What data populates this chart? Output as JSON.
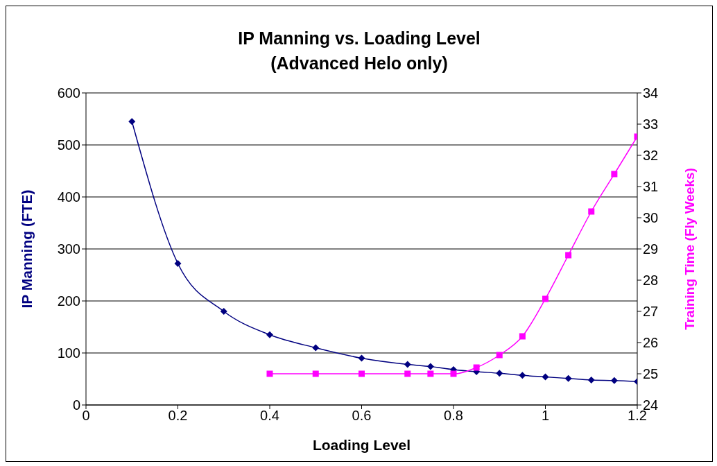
{
  "chart_data": {
    "type": "line",
    "title": "IP Manning vs. Loading Level\n(Advanced Helo only)",
    "xlabel": "Loading Level",
    "ylabel": "IP Manning (FTE)",
    "y2label": "Training Time (Fly Weeks)",
    "xlim": [
      0,
      1.2
    ],
    "xticks": [
      0,
      0.2,
      0.4,
      0.6,
      0.8,
      1,
      1.2
    ],
    "ylim": [
      0,
      600
    ],
    "yticks": [
      0,
      100,
      200,
      300,
      400,
      500,
      600
    ],
    "y2lim": [
      24,
      34
    ],
    "y2ticks": [
      24,
      25,
      26,
      27,
      28,
      29,
      30,
      31,
      32,
      33,
      34
    ],
    "grid": "y",
    "legend": false,
    "series": [
      {
        "color": "#000080",
        "marker": "diamond",
        "x": [
          0.1,
          0.2,
          0.3,
          0.4,
          0.5,
          0.6,
          0.7,
          0.75,
          0.8,
          0.85,
          0.9,
          0.95,
          1.0,
          1.05,
          1.1,
          1.15,
          1.2
        ],
        "values": [
          545,
          272,
          180,
          135,
          110,
          90,
          78,
          74,
          68,
          64,
          61,
          57,
          54,
          51,
          48,
          47,
          45
        ]
      },
      {
        "color": "#ff00ff",
        "marker": "square",
        "axis": "y2",
        "x": [
          0.4,
          0.5,
          0.6,
          0.7,
          0.75,
          0.8,
          0.85,
          0.9,
          0.95,
          1.0,
          1.05,
          1.1,
          1.15,
          1.2
        ],
        "values": [
          25,
          25,
          25,
          25,
          25,
          25,
          25.2,
          25.6,
          26.2,
          27.4,
          28.8,
          30.2,
          31.4,
          32.6
        ]
      }
    ]
  }
}
